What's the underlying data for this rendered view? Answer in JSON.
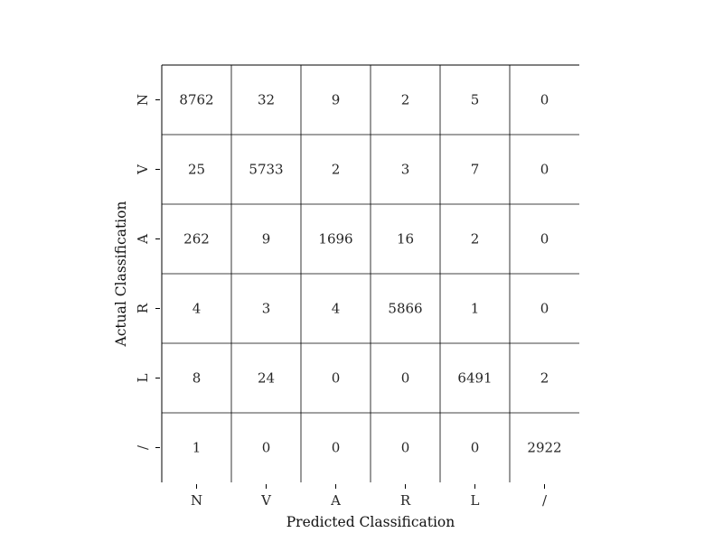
{
  "chart_data": {
    "type": "heatmap",
    "title": "",
    "xlabel": "Predicted Classification",
    "ylabel": "Actual Classification",
    "x_categories": [
      "N",
      "V",
      "A",
      "R",
      "L",
      "/"
    ],
    "y_categories": [
      "N",
      "V",
      "A",
      "R",
      "L",
      "/"
    ],
    "values": [
      [
        8762,
        32,
        9,
        2,
        5,
        0
      ],
      [
        25,
        5733,
        2,
        3,
        7,
        0
      ],
      [
        262,
        9,
        1696,
        16,
        2,
        0
      ],
      [
        4,
        3,
        4,
        5866,
        1,
        0
      ],
      [
        8,
        24,
        0,
        0,
        6491,
        2
      ],
      [
        1,
        0,
        0,
        0,
        0,
        2922
      ]
    ],
    "grid": true,
    "colors": {
      "cell_fill": "#ffffff",
      "grid_line": "#000000",
      "text": "#262626"
    }
  }
}
